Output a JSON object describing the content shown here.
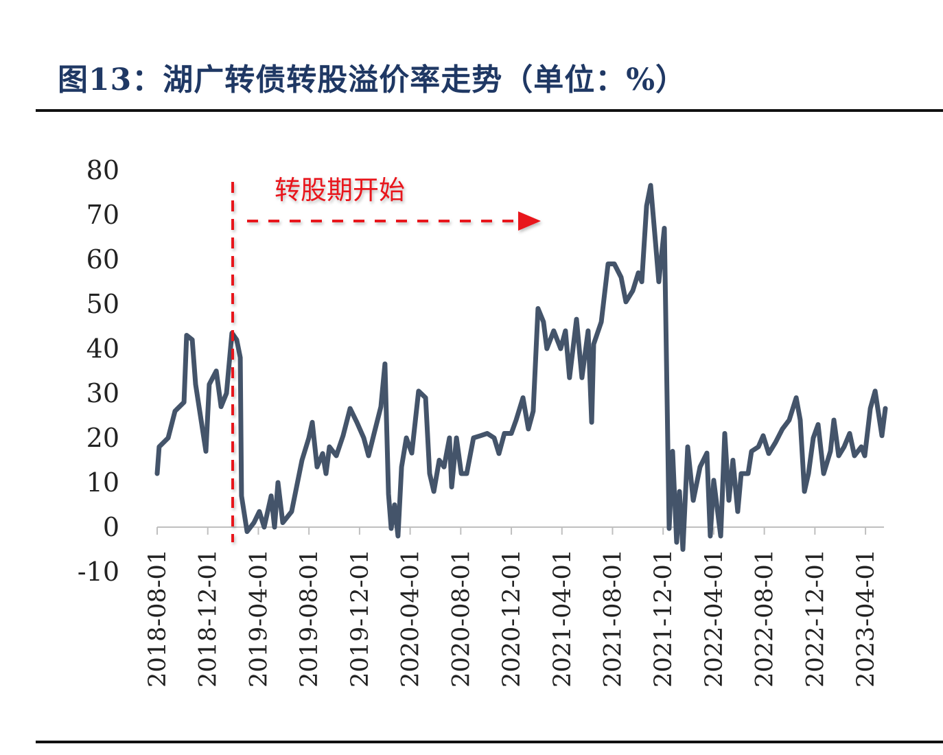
{
  "title": "图13：湖广转债转股溢价率走势（单位：%）",
  "annotation": "转股期开始",
  "colors": {
    "line": "#44546a",
    "annotation": "#e8121a",
    "title": "#1f3864",
    "axis": "#bfbfbf"
  },
  "chart_data": {
    "type": "line",
    "title": "图13：湖广转债转股溢价率走势（单位：%）",
    "xlabel": "",
    "ylabel": "%",
    "x_unit": "months since 2018-08-01",
    "ylim": [
      -10,
      80
    ],
    "yticks": [
      "80",
      "70",
      "60",
      "50",
      "40",
      "30",
      "20",
      "10",
      "0",
      "-10"
    ],
    "ytick_values": [
      80,
      70,
      60,
      50,
      40,
      30,
      20,
      10,
      0,
      -10
    ],
    "xtick_labels": [
      "2018-08-01",
      "2018-12-01",
      "2019-04-01",
      "2019-08-01",
      "2019-12-01",
      "2020-04-01",
      "2020-08-01",
      "2020-12-01",
      "2021-04-01",
      "2021-08-01",
      "2021-12-01",
      "2022-04-01",
      "2022-08-01",
      "2022-12-01",
      "2023-04-01"
    ],
    "xtick_values": [
      0,
      4,
      8,
      12,
      16,
      20,
      24,
      28,
      32,
      36,
      40,
      44,
      48,
      52,
      56
    ],
    "grid": false,
    "annotation": {
      "text": "转股期开始",
      "x_start": 6.0
    },
    "series": [
      {
        "name": "转股溢价率",
        "x": [
          0,
          0.16,
          0.87,
          1.41,
          2.12,
          2.33,
          2.77,
          3.04,
          3.85,
          4.12,
          4.67,
          5.05,
          5.48,
          5.91,
          6.29,
          6.57,
          6.67,
          7.11,
          7.65,
          8.08,
          8.46,
          9.01,
          9.28,
          9.55,
          9.93,
          10.63,
          11.45,
          11.99,
          12.26,
          12.64,
          13.08,
          13.35,
          13.62,
          14.16,
          14.7,
          15.25,
          15.79,
          16.33,
          16.71,
          17.15,
          17.69,
          18.01,
          18.29,
          18.5,
          18.77,
          19.04,
          19.32,
          19.7,
          20.13,
          20.67,
          21.22,
          21.54,
          21.87,
          22.3,
          22.68,
          23.11,
          23.28,
          23.66,
          24.04,
          24.47,
          25.01,
          25.56,
          26.1,
          26.64,
          27.02,
          27.45,
          28,
          28.38,
          28.92,
          29.35,
          29.73,
          30.11,
          30.54,
          30.81,
          31.35,
          31.9,
          32.28,
          32.6,
          33.15,
          33.58,
          34.07,
          34.35,
          34.51,
          35.11,
          35.65,
          36.14,
          36.68,
          37.06,
          37.6,
          38.04,
          38.31,
          38.69,
          39.01,
          39.39,
          39.66,
          40.1,
          40.48,
          40.75,
          41.07,
          41.29,
          41.56,
          41.94,
          42.38,
          42.92,
          43.46,
          43.73,
          44.0,
          44.55,
          44.87,
          45.2,
          45.52,
          45.9,
          46.17,
          46.72,
          46.99,
          47.53,
          47.91,
          48.35,
          48.89,
          49.43,
          49.97,
          50.52,
          50.84,
          51.17,
          51.49,
          51.87,
          52.25,
          52.69,
          53.23,
          53.5,
          53.88,
          54.31,
          54.75,
          55.13,
          55.67,
          55.94,
          56.38,
          56.76,
          57.3,
          57.57
        ],
        "values": [
          12,
          18,
          20,
          26,
          28,
          43,
          42,
          32,
          17,
          32,
          35,
          27,
          30,
          43.5,
          42,
          38,
          7,
          -1,
          1,
          3.5,
          0,
          7,
          0,
          10,
          1,
          3.5,
          15,
          20,
          23.5,
          13.5,
          16.5,
          12,
          18,
          16,
          20.5,
          26.6,
          23.5,
          20,
          16,
          21,
          27,
          36.6,
          7.4,
          -0.3,
          5,
          -2,
          13.5,
          20,
          16.6,
          30.5,
          29,
          12,
          8,
          15,
          13.5,
          20,
          9,
          20,
          12,
          12,
          20,
          20.5,
          21,
          20,
          16.5,
          21,
          21,
          24,
          29,
          22,
          26,
          49,
          46,
          40,
          44,
          40,
          44,
          33.5,
          46.6,
          33.5,
          44,
          23.5,
          41,
          46,
          59,
          59,
          56,
          50.5,
          53,
          57,
          55,
          72,
          76.6,
          64,
          55,
          67,
          -0.3,
          17,
          -3.4,
          8,
          -5,
          18,
          6,
          13.5,
          16.6,
          -2,
          10.5,
          -2,
          21,
          6,
          15,
          3.5,
          12,
          12,
          17,
          18,
          20.5,
          16.5,
          19,
          22,
          24,
          29,
          24,
          8,
          12,
          20,
          23,
          12,
          17,
          24,
          16,
          18,
          21,
          16,
          18,
          16,
          26.6,
          30.5,
          20.5,
          26.6
        ]
      }
    ]
  }
}
